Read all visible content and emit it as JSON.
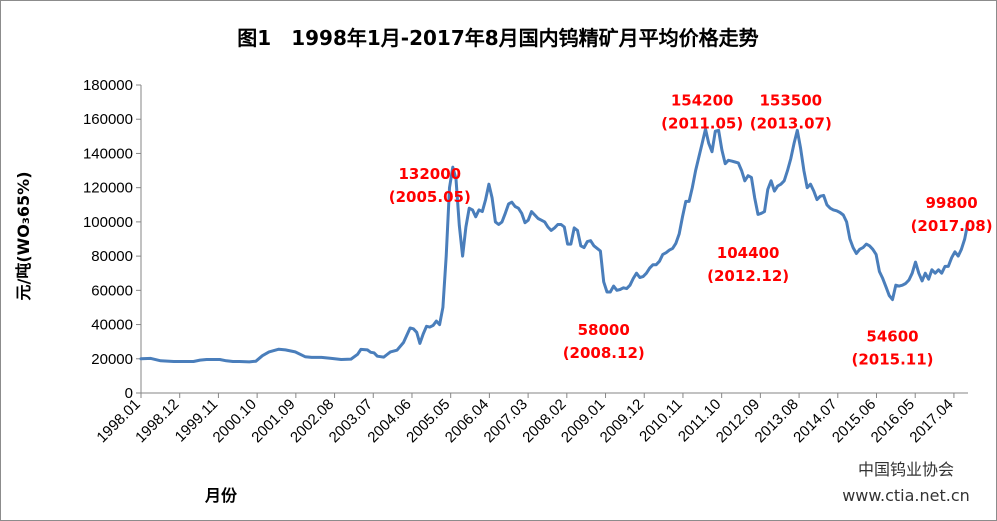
{
  "chart_data": {
    "type": "line",
    "title": "图1　1998年1月-2017年8月国内钨精矿月平均价格走势",
    "xlabel": "月份",
    "ylabel": "元/吨(WO₃65%)",
    "ylim": [
      0,
      180000
    ],
    "yticks": [
      0,
      20000,
      40000,
      60000,
      80000,
      100000,
      120000,
      140000,
      160000,
      180000
    ],
    "xtick_labels": [
      "1998.01",
      "1998.12",
      "1999.11",
      "2000.10",
      "2001.09",
      "2002.08",
      "2003.07",
      "2004.06",
      "2005.05",
      "2006.04",
      "2007.03",
      "2008.02",
      "2009.01",
      "2009.12",
      "2010.11",
      "2011.10",
      "2012.09",
      "2013.08",
      "2014.07",
      "2015.06",
      "2016.05",
      "2017.04"
    ],
    "series_color": "#4a7ebb",
    "points": [
      [
        0,
        20000
      ],
      [
        3,
        20200
      ],
      [
        6,
        18800
      ],
      [
        10,
        18400
      ],
      [
        16,
        18400
      ],
      [
        18,
        19200
      ],
      [
        20,
        19600
      ],
      [
        24,
        19600
      ],
      [
        26,
        18800
      ],
      [
        28,
        18400
      ],
      [
        30,
        18400
      ],
      [
        33,
        18200
      ],
      [
        35,
        18600
      ],
      [
        37,
        21800
      ],
      [
        39,
        24000
      ],
      [
        42,
        25600
      ],
      [
        44,
        25200
      ],
      [
        47,
        24000
      ],
      [
        50,
        21200
      ],
      [
        52,
        20800
      ],
      [
        55,
        20800
      ],
      [
        58,
        20200
      ],
      [
        61,
        19600
      ],
      [
        64,
        19800
      ],
      [
        66,
        22600
      ],
      [
        67,
        25500
      ],
      [
        69,
        25200
      ],
      [
        70,
        23800
      ],
      [
        71,
        23500
      ],
      [
        72,
        21500
      ],
      [
        74,
        21000
      ],
      [
        75,
        22500
      ],
      [
        76,
        24000
      ],
      [
        78,
        25000
      ],
      [
        80,
        29500
      ],
      [
        82,
        38000
      ],
      [
        83,
        37500
      ],
      [
        84,
        35500
      ],
      [
        85,
        29000
      ],
      [
        86,
        34500
      ],
      [
        87,
        39000
      ],
      [
        88,
        38500
      ],
      [
        89,
        39500
      ],
      [
        90,
        42000
      ],
      [
        91,
        40000
      ],
      [
        92,
        50000
      ],
      [
        93,
        80000
      ],
      [
        94,
        120000
      ],
      [
        95,
        132000
      ],
      [
        96,
        125000
      ],
      [
        97,
        98000
      ],
      [
        98,
        80000
      ],
      [
        99,
        97000
      ],
      [
        100,
        108000
      ],
      [
        101,
        107000
      ],
      [
        102,
        103000
      ],
      [
        103,
        107000
      ],
      [
        104,
        106000
      ],
      [
        105,
        113000
      ],
      [
        106,
        122000
      ],
      [
        107,
        114000
      ],
      [
        108,
        100000
      ],
      [
        109,
        98500
      ],
      [
        110,
        100000
      ],
      [
        111,
        105000
      ],
      [
        112,
        110500
      ],
      [
        113,
        111500
      ],
      [
        114,
        109000
      ],
      [
        115,
        108000
      ],
      [
        116,
        105000
      ],
      [
        117,
        99500
      ],
      [
        118,
        101000
      ],
      [
        119,
        106000
      ],
      [
        120,
        104000
      ],
      [
        121,
        102000
      ],
      [
        122,
        101000
      ],
      [
        123,
        100000
      ],
      [
        124,
        97000
      ],
      [
        125,
        95000
      ],
      [
        126,
        96500
      ],
      [
        127,
        98500
      ],
      [
        128,
        98500
      ],
      [
        129,
        97000
      ],
      [
        130,
        87000
      ],
      [
        131,
        87000
      ],
      [
        132,
        96500
      ],
      [
        133,
        95000
      ],
      [
        134,
        86000
      ],
      [
        135,
        85000
      ],
      [
        136,
        88500
      ],
      [
        137,
        89000
      ],
      [
        138,
        86000
      ],
      [
        139,
        84500
      ],
      [
        140,
        83000
      ],
      [
        141,
        65000
      ],
      [
        142,
        59000
      ],
      [
        143,
        59000
      ],
      [
        144,
        62500
      ],
      [
        145,
        60000
      ],
      [
        146,
        60500
      ],
      [
        147,
        61500
      ],
      [
        148,
        61000
      ],
      [
        149,
        63000
      ],
      [
        150,
        67000
      ],
      [
        151,
        70000
      ],
      [
        152,
        67500
      ],
      [
        153,
        68000
      ],
      [
        154,
        70000
      ],
      [
        155,
        73000
      ],
      [
        156,
        75000
      ],
      [
        157,
        75000
      ],
      [
        158,
        77000
      ],
      [
        159,
        81000
      ],
      [
        160,
        82000
      ],
      [
        161,
        83500
      ],
      [
        162,
        84500
      ],
      [
        163,
        87500
      ],
      [
        164,
        93000
      ],
      [
        165,
        103000
      ],
      [
        166,
        112000
      ],
      [
        167,
        112000
      ],
      [
        168,
        120000
      ],
      [
        169,
        130000
      ],
      [
        170,
        138000
      ],
      [
        171,
        146000
      ],
      [
        172,
        154200
      ],
      [
        173,
        146000
      ],
      [
        174,
        141000
      ],
      [
        175,
        153000
      ],
      [
        176,
        153500
      ],
      [
        177,
        142000
      ],
      [
        178,
        134000
      ],
      [
        179,
        136000
      ],
      [
        180,
        135500
      ],
      [
        181,
        135000
      ],
      [
        182,
        134500
      ],
      [
        183,
        130000
      ],
      [
        184,
        124000
      ],
      [
        185,
        127000
      ],
      [
        186,
        126000
      ],
      [
        187,
        114000
      ],
      [
        188,
        104400
      ],
      [
        189,
        105000
      ],
      [
        190,
        106000
      ],
      [
        191,
        119000
      ],
      [
        192,
        124000
      ],
      [
        193,
        118000
      ],
      [
        194,
        121000
      ],
      [
        195,
        122000
      ],
      [
        196,
        124000
      ],
      [
        197,
        130000
      ],
      [
        198,
        137000
      ],
      [
        199,
        146000
      ],
      [
        200,
        153500
      ],
      [
        201,
        143000
      ],
      [
        202,
        130000
      ],
      [
        203,
        120000
      ],
      [
        204,
        122000
      ],
      [
        205,
        118000
      ],
      [
        206,
        113000
      ],
      [
        207,
        115000
      ],
      [
        208,
        115500
      ],
      [
        209,
        110000
      ],
      [
        210,
        108000
      ],
      [
        211,
        107000
      ],
      [
        212,
        106500
      ],
      [
        213,
        105500
      ],
      [
        214,
        104000
      ],
      [
        215,
        100000
      ],
      [
        216,
        90000
      ],
      [
        217,
        85000
      ],
      [
        218,
        81500
      ],
      [
        219,
        84000
      ],
      [
        220,
        85000
      ],
      [
        221,
        87000
      ],
      [
        222,
        86000
      ],
      [
        223,
        84000
      ],
      [
        224,
        81000
      ],
      [
        225,
        71000
      ],
      [
        226,
        67000
      ],
      [
        227,
        62000
      ],
      [
        228,
        57000
      ],
      [
        229,
        54600
      ],
      [
        230,
        63000
      ],
      [
        231,
        62500
      ],
      [
        232,
        63000
      ],
      [
        233,
        64000
      ],
      [
        234,
        66000
      ],
      [
        235,
        70000
      ],
      [
        236,
        76500
      ],
      [
        237,
        70000
      ],
      [
        238,
        65500
      ],
      [
        239,
        70000
      ],
      [
        240,
        66500
      ],
      [
        241,
        72000
      ],
      [
        242,
        70000
      ],
      [
        243,
        72000
      ],
      [
        244,
        70000
      ],
      [
        245,
        74000
      ],
      [
        246,
        74000
      ],
      [
        247,
        79000
      ],
      [
        248,
        82500
      ],
      [
        249,
        80000
      ],
      [
        250,
        84000
      ],
      [
        251,
        90000
      ],
      [
        252,
        99800
      ]
    ],
    "annotations": [
      {
        "value": "132000",
        "date": "(2005.05)",
        "idx": 88,
        "y": 125000
      },
      {
        "value": "58000",
        "date": "(2008.12)",
        "idx": 141,
        "y": 34000
      },
      {
        "value": "154200",
        "date": "(2011.05)",
        "idx": 171,
        "y": 168000
      },
      {
        "value": "104400",
        "date": "(2012.12)",
        "idx": 185,
        "y": 79000
      },
      {
        "value": "153500",
        "date": "(2013.07)",
        "idx": 198,
        "y": 168000
      },
      {
        "value": "54600",
        "date": "(2015.11)",
        "idx": 229,
        "y": 30000
      },
      {
        "value": "99800",
        "date": "(2017.08)",
        "idx": 247,
        "y": 108000
      }
    ],
    "legend": "none",
    "grid": false
  },
  "watermark": {
    "line1": "中国钨业协会",
    "line2": "www.ctia.net.cn"
  }
}
